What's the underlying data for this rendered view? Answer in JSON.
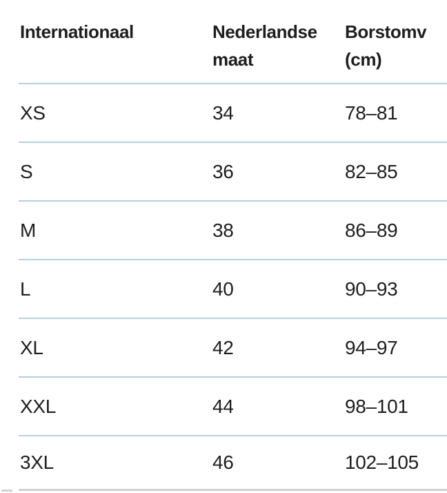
{
  "size_table": {
    "headers": [
      {
        "id": "international",
        "lines": [
          "Internationaal",
          ""
        ]
      },
      {
        "id": "dutch_size",
        "lines": [
          "Nederlandse",
          "maat"
        ]
      },
      {
        "id": "chest_cm",
        "lines": [
          "Borstomv",
          "(cm)"
        ]
      }
    ],
    "rows": [
      {
        "size": "XS",
        "nl": "34",
        "chest": "78–81"
      },
      {
        "size": "S",
        "nl": "36",
        "chest": "82–85"
      },
      {
        "size": "M",
        "nl": "38",
        "chest": "86–89"
      },
      {
        "size": "L",
        "nl": "40",
        "chest": "90–93"
      },
      {
        "size": "XL",
        "nl": "42",
        "chest": "94–97"
      },
      {
        "size": "XXL",
        "nl": "44",
        "chest": "98–101"
      },
      {
        "size": "3XL",
        "nl": "46",
        "chest": "102–105"
      }
    ]
  },
  "colors": {
    "text": "#1e1e1e",
    "separator": "#b4cfe4",
    "bottom_border": "#d2d2d2",
    "background": "#ffffff"
  }
}
